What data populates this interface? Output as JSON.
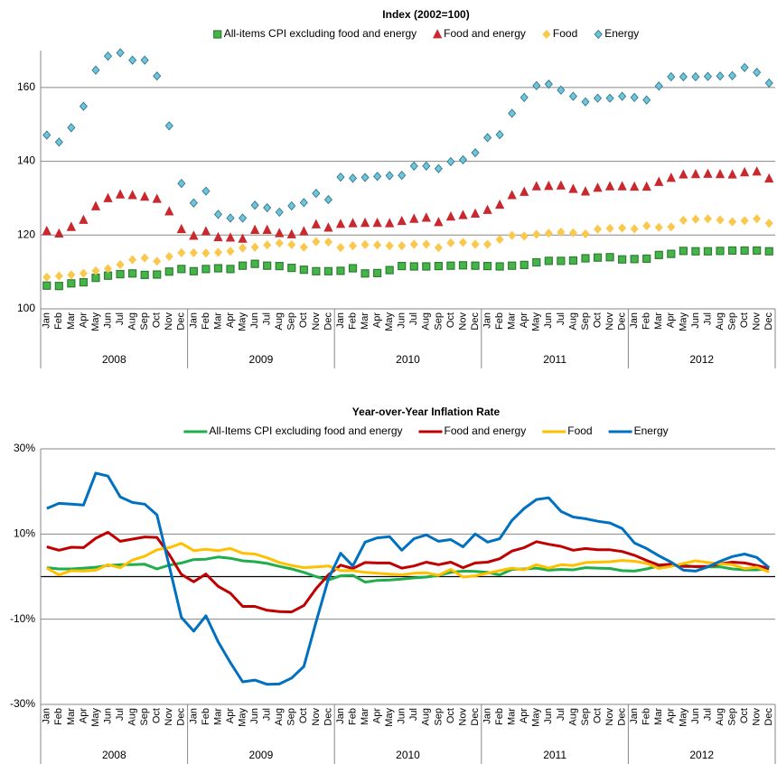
{
  "chart_data": [
    {
      "type": "scatter",
      "title": "Index (2002=100)",
      "categories": [
        "Jan",
        "Feb",
        "Mar",
        "Apr",
        "May",
        "Jun",
        "Jul",
        "Aug",
        "Sep",
        "Oct",
        "Nov",
        "Dec",
        "Jan",
        "Feb",
        "Mar",
        "Apr",
        "May",
        "Jun",
        "Jul",
        "Aug",
        "Sep",
        "Oct",
        "Nov",
        "Dec",
        "Jan",
        "Feb",
        "Mar",
        "Apr",
        "May",
        "Jun",
        "Jul",
        "Aug",
        "Sep",
        "Oct",
        "Nov",
        "Dec",
        "Jan",
        "Feb",
        "Mar",
        "Apr",
        "May",
        "Jun",
        "Jul",
        "Aug",
        "Sep",
        "Oct",
        "Nov",
        "Dec",
        "Jan",
        "Feb",
        "Mar",
        "Apr",
        "May",
        "Jun",
        "Jul",
        "Aug",
        "Sep",
        "Oct",
        "Nov",
        "Dec"
      ],
      "year_groups": [
        "2008",
        "2009",
        "2010",
        "2011",
        "2012"
      ],
      "ylim": [
        100,
        170
      ],
      "yticks": [
        100,
        120,
        140,
        160
      ],
      "grid": true,
      "series": [
        {
          "name": "All-items CPI excluding food and energy",
          "color": "#45b549",
          "edgecolor": "#2e7d32",
          "marker": "square",
          "values": [
            106.3,
            106.2,
            106.9,
            107.2,
            108.4,
            109.0,
            109.4,
            109.6,
            109.2,
            109.3,
            110.1,
            110.8,
            110.2,
            110.8,
            111.0,
            110.8,
            111.7,
            112.2,
            111.7,
            111.6,
            111.1,
            110.6,
            110.2,
            110.2,
            110.3,
            111.0,
            109.6,
            109.7,
            110.5,
            111.6,
            111.5,
            111.5,
            111.6,
            111.7,
            111.8,
            111.7,
            111.6,
            111.5,
            111.7,
            111.9,
            112.6,
            113.0,
            113.0,
            113.1,
            113.7,
            113.9,
            114.0,
            113.4,
            113.5,
            113.6,
            114.6,
            114.9,
            115.7,
            115.6,
            115.6,
            115.7,
            115.8,
            115.8,
            115.8,
            115.6
          ]
        },
        {
          "name": "Food and energy",
          "color": "#c8282e",
          "edgecolor": "#c8282e",
          "marker": "triangle",
          "values": [
            121.1,
            120.4,
            122.2,
            124.1,
            127.8,
            130.0,
            131.0,
            130.8,
            130.4,
            129.8,
            126.4,
            121.6,
            119.8,
            121.0,
            119.4,
            119.3,
            119.0,
            121.4,
            121.4,
            120.5,
            120.2,
            121.0,
            122.9,
            122.0,
            123.0,
            123.2,
            123.3,
            123.3,
            123.2,
            123.8,
            124.4,
            124.7,
            123.5,
            125.0,
            125.4,
            125.8,
            126.8,
            128.2,
            130.8,
            131.7,
            133.2,
            133.3,
            133.4,
            132.5,
            131.8,
            132.8,
            133.2,
            133.2,
            133.1,
            133.1,
            134.4,
            135.5,
            136.4,
            136.5,
            136.6,
            136.5,
            136.4,
            137.0,
            137.2,
            135.3
          ]
        },
        {
          "name": "Food",
          "color": "#fbc84e",
          "edgecolor": "#fbc84e",
          "marker": "diamond",
          "values": [
            108.6,
            108.9,
            109.2,
            109.6,
            110.3,
            110.9,
            112.0,
            113.3,
            113.8,
            112.9,
            114.2,
            115.2,
            115.2,
            115.1,
            115.3,
            115.6,
            116.5,
            116.7,
            117.3,
            117.8,
            117.4,
            116.7,
            118.2,
            118.1,
            116.6,
            117.1,
            117.4,
            117.3,
            117.1,
            117.1,
            117.5,
            117.5,
            116.6,
            117.9,
            118.0,
            117.5,
            117.5,
            118.8,
            119.9,
            119.7,
            120.2,
            120.5,
            120.8,
            120.6,
            120.3,
            121.6,
            121.8,
            121.9,
            121.7,
            122.5,
            122.1,
            122.2,
            124.0,
            124.3,
            124.4,
            124.1,
            123.6,
            123.9,
            124.4,
            123.2
          ]
        },
        {
          "name": "Energy",
          "color": "#6cc5d8",
          "edgecolor": "#2b6c86",
          "marker": "diamond",
          "values": [
            147.1,
            145.2,
            149.1,
            154.9,
            164.7,
            168.5,
            169.4,
            167.4,
            167.4,
            163.1,
            149.6,
            134.0,
            128.7,
            131.9,
            125.6,
            124.6,
            124.6,
            128.1,
            127.4,
            126.2,
            127.9,
            128.8,
            131.3,
            129.6,
            135.7,
            135.4,
            135.6,
            135.9,
            136.1,
            136.2,
            138.7,
            138.7,
            138.0,
            139.9,
            140.4,
            142.3,
            146.4,
            147.2,
            153.0,
            157.3,
            160.5,
            160.9,
            159.3,
            157.6,
            156.1,
            157.1,
            157.1,
            157.6,
            157.3,
            156.6,
            160.4,
            162.9,
            162.9,
            162.9,
            163.0,
            163.1,
            163.2,
            165.4,
            164.1,
            161.2
          ]
        }
      ]
    },
    {
      "type": "line",
      "title": "Year-over-Year Inflation Rate",
      "categories": [
        "Jan",
        "Feb",
        "Mar",
        "Apr",
        "May",
        "Jun",
        "Jul",
        "Aug",
        "Sep",
        "Oct",
        "Nov",
        "Dec",
        "Jan",
        "Feb",
        "Mar",
        "Apr",
        "May",
        "Jun",
        "Jul",
        "Aug",
        "Sep",
        "Oct",
        "Nov",
        "Dec",
        "Jan",
        "Feb",
        "Mar",
        "Apr",
        "May",
        "Jun",
        "Jul",
        "Aug",
        "Sep",
        "Oct",
        "Nov",
        "Dec",
        "Jan",
        "Feb",
        "Mar",
        "Apr",
        "May",
        "Jun",
        "Jul",
        "Aug",
        "Sep",
        "Oct",
        "Nov",
        "Dec",
        "Jan",
        "Feb",
        "Mar",
        "Apr",
        "May",
        "Jun",
        "Jul",
        "Aug",
        "Sep",
        "Oct",
        "Nov",
        "Dec"
      ],
      "year_groups": [
        "2008",
        "2009",
        "2010",
        "2011",
        "2012"
      ],
      "ylim": [
        -30,
        30
      ],
      "yticks": [
        {
          "value": -30,
          "label": "-30%"
        },
        {
          "value": -10,
          "label": "-10%"
        },
        {
          "value": 10,
          "label": "10%"
        },
        {
          "value": 30,
          "label": "30%"
        }
      ],
      "grid": true,
      "series": [
        {
          "name": "All-Items CPI excluding food and energy",
          "color": "#1fae4b",
          "values": [
            2.1,
            1.8,
            1.8,
            2.0,
            2.2,
            2.6,
            2.8,
            2.8,
            2.9,
            1.8,
            2.7,
            3.2,
            4.0,
            4.1,
            4.6,
            4.3,
            3.7,
            3.5,
            3.1,
            2.4,
            1.8,
            1.0,
            0.0,
            -0.8,
            0.2,
            0.3,
            -1.3,
            -0.9,
            -0.8,
            -0.6,
            -0.3,
            -0.1,
            0.3,
            1.0,
            1.3,
            1.2,
            1.0,
            0.4,
            1.7,
            1.8,
            2.0,
            1.5,
            1.7,
            1.6,
            2.1,
            2.0,
            1.9,
            1.4,
            1.3,
            1.8,
            2.5,
            2.6,
            2.7,
            2.3,
            2.3,
            2.3,
            1.8,
            1.6,
            1.6,
            1.9
          ]
        },
        {
          "name": "Food and energy",
          "color": "#c00000",
          "values": [
            7.0,
            6.2,
            6.9,
            6.8,
            9.0,
            10.4,
            8.3,
            8.8,
            9.3,
            9.2,
            5.2,
            0.5,
            -1.2,
            0.6,
            -2.3,
            -3.9,
            -7.0,
            -7.0,
            -7.9,
            -8.2,
            -8.3,
            -6.8,
            -2.8,
            0.4,
            2.7,
            1.9,
            3.3,
            3.2,
            3.2,
            2.0,
            2.5,
            3.4,
            2.8,
            3.4,
            2.1,
            3.2,
            3.4,
            4.2,
            6.0,
            6.8,
            8.2,
            7.6,
            7.1,
            6.2,
            6.6,
            6.3,
            6.3,
            5.9,
            5.0,
            3.8,
            2.7,
            2.9,
            2.4,
            2.4,
            2.4,
            3.0,
            3.4,
            3.2,
            2.6,
            1.9
          ]
        },
        {
          "name": "Food",
          "color": "#ffc000",
          "values": [
            2.0,
            0.4,
            1.4,
            1.3,
            1.5,
            2.8,
            2.1,
            3.9,
            4.8,
            6.3,
            6.8,
            7.8,
            6.1,
            6.4,
            6.1,
            6.6,
            5.5,
            5.3,
            4.4,
            3.3,
            2.6,
            2.1,
            2.3,
            2.5,
            1.4,
            1.4,
            1.0,
            0.8,
            0.6,
            0.4,
            0.8,
            0.9,
            0.3,
            1.7,
            -0.1,
            0.2,
            0.8,
            1.4,
            2.0,
            1.6,
            2.8,
            2.0,
            2.8,
            2.6,
            3.3,
            3.4,
            3.5,
            3.8,
            3.6,
            3.1,
            1.9,
            2.4,
            3.1,
            3.7,
            3.3,
            3.0,
            2.8,
            1.9,
            2.2,
            1.1
          ]
        },
        {
          "name": "Energy",
          "color": "#0070c0",
          "values": [
            16.0,
            17.2,
            17.0,
            16.8,
            24.3,
            23.6,
            18.7,
            17.4,
            17.0,
            14.5,
            2.5,
            -9.6,
            -12.8,
            -9.2,
            -15.3,
            -20.2,
            -24.7,
            -24.3,
            -25.3,
            -25.2,
            -23.8,
            -21.1,
            -10.6,
            -0.6,
            5.5,
            2.5,
            8.1,
            9.1,
            9.4,
            6.2,
            8.9,
            9.8,
            8.3,
            8.7,
            7.0,
            10.0,
            8.1,
            8.9,
            13.2,
            16.0,
            18.1,
            18.5,
            15.3,
            14.0,
            13.6,
            13.0,
            12.6,
            11.3,
            7.9,
            6.6,
            4.9,
            3.4,
            1.5,
            1.3,
            2.3,
            3.6,
            4.7,
            5.3,
            4.5,
            2.1
          ]
        }
      ]
    }
  ]
}
